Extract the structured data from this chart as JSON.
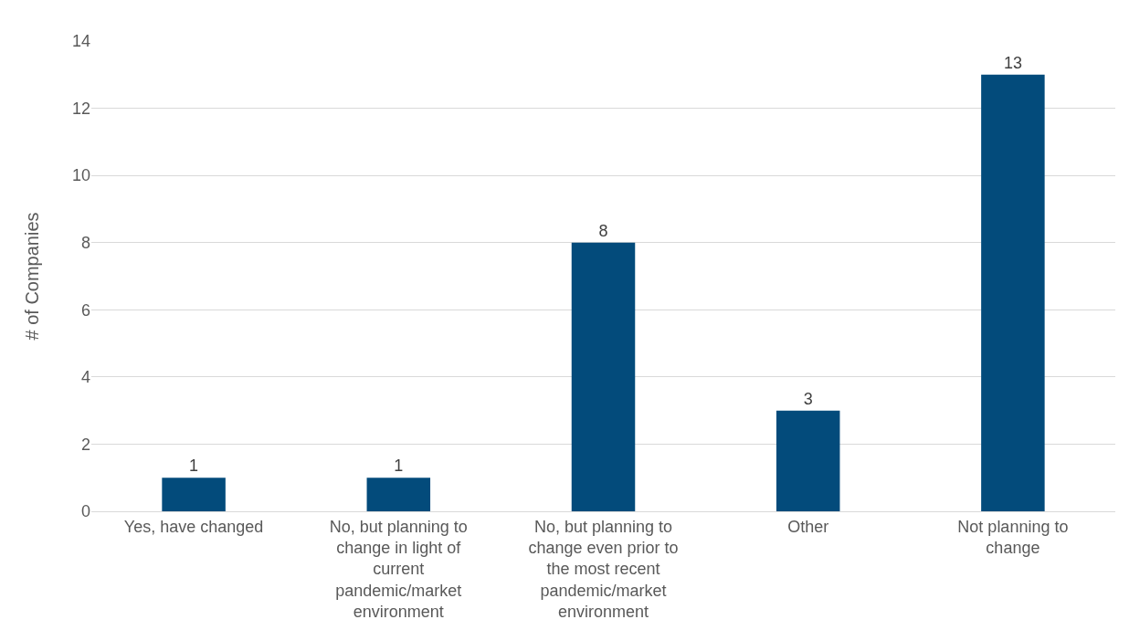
{
  "chart_data": {
    "type": "bar",
    "ylabel": "# of Companies",
    "categories": [
      "Yes, have changed",
      "No, but planning to change in light of current pandemic/market environment",
      "No, but planning to change even prior to the most recent pandemic/market environment",
      "Other",
      "Not planning to change"
    ],
    "values": [
      1,
      1,
      8,
      3,
      13
    ],
    "color": "#034b7b",
    "ylim": [
      0,
      14
    ],
    "yticks": [
      0,
      2,
      4,
      6,
      8,
      10,
      12,
      14
    ],
    "grid": "y",
    "data_labels": true
  }
}
